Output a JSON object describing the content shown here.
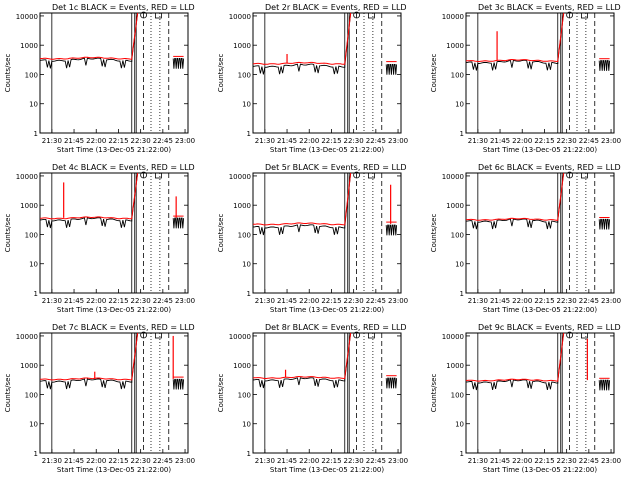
{
  "figure": {
    "xlabel": "Start Time (13-Dec-05 21:22:00)",
    "ylabel": "Counts/sec",
    "x_tick_labels": [
      "21:30",
      "21:45",
      "22:00",
      "22:15",
      "22:30",
      "22:45",
      "23:00"
    ],
    "y_tick_labels": [
      "1",
      "10",
      "100",
      "1000",
      "10000"
    ]
  },
  "chart_data": [
    {
      "type": "line",
      "title": "Det 1c BLACK = Events, RED = LLD",
      "events_level": 320,
      "lld_level": 360,
      "spikes": []
    },
    {
      "type": "line",
      "title": "Det 2r BLACK = Events, RED = LLD",
      "events_level": 200,
      "lld_level": 240,
      "spikes": [
        {
          "t": "21:45",
          "y": 500
        }
      ]
    },
    {
      "type": "line",
      "title": "Det 3c BLACK = Events, RED = LLD",
      "events_level": 270,
      "lld_level": 300,
      "spikes": [
        {
          "t": "21:43",
          "y": 3000
        }
      ]
    },
    {
      "type": "line",
      "title": "Det 4c BLACK = Events, RED = LLD",
      "events_level": 330,
      "lld_level": 370,
      "spikes": [
        {
          "t": "21:38",
          "y": 6000
        },
        {
          "t": "22:54",
          "y": 2000
        }
      ]
    },
    {
      "type": "line",
      "title": "Det 5r BLACK = Events, RED = LLD",
      "events_level": 190,
      "lld_level": 230,
      "spikes": [
        {
          "t": "22:55",
          "y": 5000
        }
      ]
    },
    {
      "type": "line",
      "title": "Det 6c BLACK = Events, RED = LLD",
      "events_level": 300,
      "lld_level": 330,
      "spikes": []
    },
    {
      "type": "line",
      "title": "Det 7c BLACK = Events, RED = LLD",
      "events_level": 300,
      "lld_level": 340,
      "spikes": [
        {
          "t": "21:59",
          "y": 600
        },
        {
          "t": "22:52",
          "y": 10000
        }
      ]
    },
    {
      "type": "line",
      "title": "Det 8r BLACK = Events, RED = LLD",
      "events_level": 330,
      "lld_level": 380,
      "spikes": [
        {
          "t": "21:44",
          "y": 700
        }
      ]
    },
    {
      "type": "line",
      "title": "Det 9c BLACK = Events, RED = LLD",
      "events_level": 280,
      "lld_level": 310,
      "spikes": [
        {
          "t": "22:44",
          "y": 8000
        }
      ]
    }
  ],
  "colors": {
    "events": "#000000",
    "lld": "#ff0000"
  }
}
